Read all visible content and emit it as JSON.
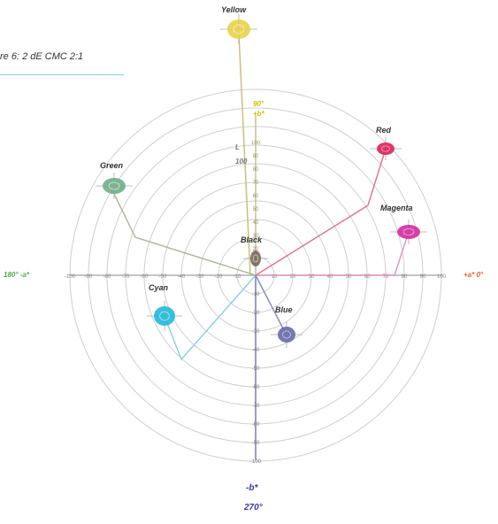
{
  "caption": "re 6: 2 dE CMC 2:1",
  "axis_labels": {
    "left": "180° -a*",
    "right": "+a* 0°",
    "bottom_axis": "-b*",
    "bottom_angle": "270°",
    "l_label": "L",
    "l_value": "100",
    "top_tick_1": "90°",
    "top_tick_2": "+b*"
  },
  "colors": {
    "yellow": {
      "name": "Yellow",
      "fill": "#e8d24a",
      "line": "#c9c17a"
    },
    "red": {
      "name": "Red",
      "fill": "#e0205a",
      "line": "#e0708a"
    },
    "magenta": {
      "name": "Magenta",
      "fill": "#d22ea0",
      "line": "#e090c0"
    },
    "green": {
      "name": "Green",
      "fill": "#6fae8a",
      "line": "#a8b59a"
    },
    "cyan": {
      "name": "Cyan",
      "fill": "#22b8d8",
      "line": "#88d0d8"
    },
    "blue": {
      "name": "Blue",
      "fill": "#6a6aa8",
      "line": "#8888c0"
    },
    "black": {
      "name": "Black",
      "fill": "#7a6a5a",
      "line": "#999999"
    }
  },
  "ticks": {
    "a_axis": [
      "-100",
      "-90",
      "-80",
      "-70",
      "-60",
      "-50",
      "-40",
      "-30",
      "-20",
      "-10",
      "10",
      "20",
      "30",
      "40",
      "50",
      "60",
      "70",
      "80",
      "90",
      "100"
    ],
    "b_axis_neg": [
      "-10",
      "-20",
      "-30",
      "-40",
      "-50",
      "-60",
      "-70",
      "-80",
      "-90",
      "-100"
    ],
    "b_axis_pos": [
      "100",
      "90",
      "80",
      "70",
      "60",
      "50",
      "40",
      "30",
      "20",
      "10"
    ]
  },
  "palette": {
    "rings": "#cfcfcf",
    "a_axis": "#a0a0a0",
    "b_axis_neg": "#5a5aa0",
    "b_axis_pos": "#b8b27a",
    "left_label": "#4ab04a",
    "right_label": "#e06030",
    "bottom_label": "#3a3aa0"
  }
}
